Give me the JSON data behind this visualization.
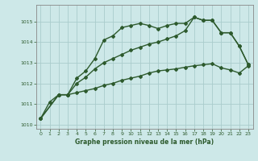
{
  "title": "Graphe pression niveau de la mer (hPa)",
  "background_color": "#cde8e8",
  "grid_color": "#aacccc",
  "line_color": "#2d5a2d",
  "xlim": [
    -0.5,
    23.5
  ],
  "ylim": [
    1009.8,
    1015.8
  ],
  "yticks": [
    1010,
    1011,
    1012,
    1013,
    1014,
    1015
  ],
  "xticks": [
    0,
    1,
    2,
    3,
    4,
    5,
    6,
    7,
    8,
    9,
    10,
    11,
    12,
    13,
    14,
    15,
    16,
    17,
    18,
    19,
    20,
    21,
    22,
    23
  ],
  "series": [
    {
      "x": [
        0,
        1,
        2,
        3,
        4,
        5,
        6,
        7,
        8,
        9,
        10,
        11,
        12,
        13,
        14,
        15,
        16,
        17,
        18,
        19,
        20,
        21,
        22,
        23
      ],
      "y": [
        1010.3,
        1011.1,
        1011.45,
        1011.45,
        1012.25,
        1012.6,
        1013.2,
        1014.1,
        1014.3,
        1014.7,
        1014.8,
        1014.9,
        1014.8,
        1014.65,
        1014.8,
        1014.9,
        1014.9,
        1015.2,
        1015.05,
        1015.05,
        1014.45,
        1014.45,
        1013.8,
        1012.9
      ],
      "marker": "D",
      "markersize": 2.0,
      "linewidth": 1.0
    },
    {
      "x": [
        0,
        2,
        3,
        4,
        5,
        6,
        7,
        8,
        9,
        10,
        11,
        12,
        13,
        14,
        15,
        16,
        17,
        18,
        19,
        20,
        21,
        22,
        23
      ],
      "y": [
        1010.3,
        1011.45,
        1011.45,
        1012.0,
        1012.3,
        1012.7,
        1013.0,
        1013.2,
        1013.4,
        1013.6,
        1013.75,
        1013.9,
        1014.0,
        1014.15,
        1014.3,
        1014.55,
        1015.2,
        1015.05,
        1015.05,
        1014.45,
        1014.45,
        1013.8,
        1012.9
      ],
      "marker": "D",
      "markersize": 2.0,
      "linewidth": 1.0
    },
    {
      "x": [
        0,
        2,
        3,
        4,
        5,
        6,
        7,
        8,
        9,
        10,
        11,
        12,
        13,
        14,
        15,
        16,
        17,
        18,
        19,
        20,
        21,
        22,
        23
      ],
      "y": [
        1010.3,
        1011.45,
        1011.45,
        1011.55,
        1011.65,
        1011.75,
        1011.9,
        1012.0,
        1012.15,
        1012.25,
        1012.35,
        1012.5,
        1012.6,
        1012.65,
        1012.7,
        1012.78,
        1012.85,
        1012.9,
        1012.95,
        1012.75,
        1012.65,
        1012.5,
        1012.85
      ],
      "marker": "D",
      "markersize": 2.0,
      "linewidth": 1.0
    }
  ]
}
